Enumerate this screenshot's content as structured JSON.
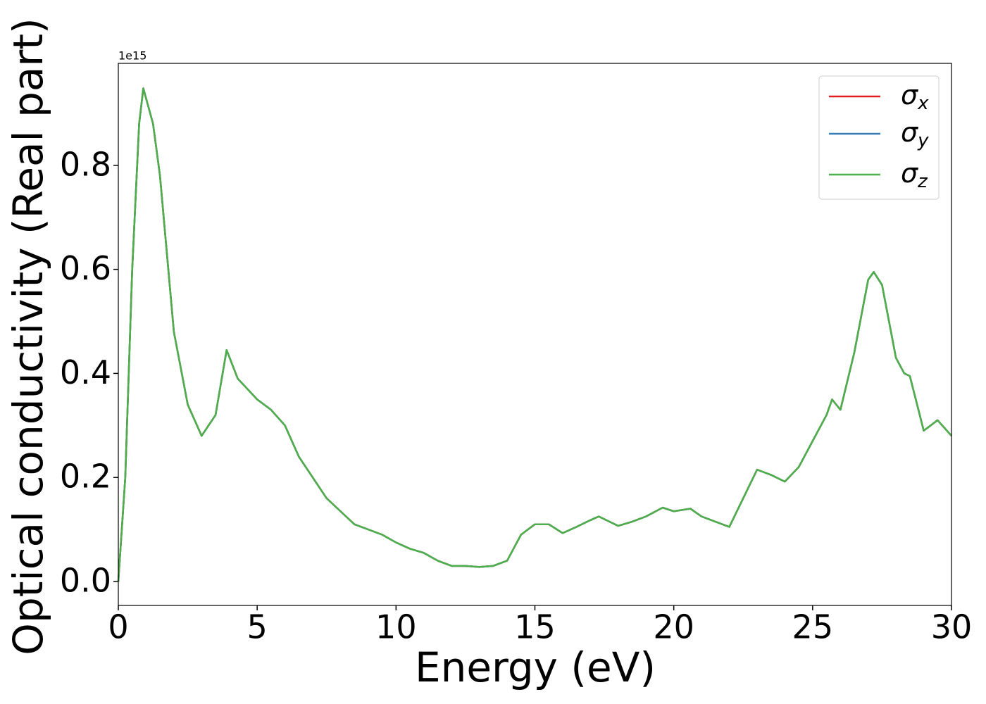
{
  "chart_data": {
    "type": "line",
    "xlabel": "Energy (eV)",
    "ylabel": "Optical conductivity (Real part)",
    "y_offset_label": "1e15",
    "x": [
      0,
      0.25,
      0.5,
      0.75,
      0.9,
      1.25,
      1.5,
      2.0,
      2.5,
      3.0,
      3.5,
      3.9,
      4.3,
      5.0,
      5.5,
      6.0,
      6.5,
      7.0,
      7.5,
      8.0,
      8.5,
      9.0,
      9.5,
      10.0,
      10.5,
      11.0,
      11.5,
      12.0,
      12.5,
      13.0,
      13.5,
      14.0,
      14.5,
      15.0,
      15.5,
      16.0,
      16.5,
      17.0,
      17.3,
      18.0,
      18.5,
      19.0,
      19.6,
      20.0,
      20.6,
      21.0,
      21.5,
      22.0,
      22.5,
      23.0,
      23.5,
      24.0,
      24.5,
      25.0,
      25.5,
      25.7,
      26.0,
      26.5,
      27.0,
      27.2,
      27.5,
      28.0,
      28.3,
      28.5,
      29.0,
      29.5,
      30.0
    ],
    "series": [
      {
        "name": "σx",
        "color": "#e41a1c",
        "values": [
          0.0,
          0.2,
          0.6,
          0.88,
          0.948,
          0.88,
          0.78,
          0.48,
          0.34,
          0.28,
          0.32,
          0.445,
          0.39,
          0.35,
          0.33,
          0.3,
          0.24,
          0.2,
          0.16,
          0.135,
          0.11,
          0.1,
          0.09,
          0.075,
          0.063,
          0.055,
          0.04,
          0.03,
          0.03,
          0.028,
          0.03,
          0.04,
          0.09,
          0.11,
          0.11,
          0.093,
          0.105,
          0.118,
          0.125,
          0.107,
          0.115,
          0.125,
          0.142,
          0.135,
          0.14,
          0.125,
          0.115,
          0.105,
          0.16,
          0.215,
          0.205,
          0.192,
          0.22,
          0.27,
          0.32,
          0.35,
          0.33,
          0.44,
          0.58,
          0.595,
          0.57,
          0.43,
          0.4,
          0.395,
          0.29,
          0.31,
          0.28
        ]
      },
      {
        "name": "σy",
        "color": "#377eb8",
        "values": [
          0.0,
          0.2,
          0.6,
          0.88,
          0.948,
          0.88,
          0.78,
          0.48,
          0.34,
          0.28,
          0.32,
          0.445,
          0.39,
          0.35,
          0.33,
          0.3,
          0.24,
          0.2,
          0.16,
          0.135,
          0.11,
          0.1,
          0.09,
          0.075,
          0.063,
          0.055,
          0.04,
          0.03,
          0.03,
          0.028,
          0.03,
          0.04,
          0.09,
          0.11,
          0.11,
          0.093,
          0.105,
          0.118,
          0.125,
          0.107,
          0.115,
          0.125,
          0.142,
          0.135,
          0.14,
          0.125,
          0.115,
          0.105,
          0.16,
          0.215,
          0.205,
          0.192,
          0.22,
          0.27,
          0.32,
          0.35,
          0.33,
          0.44,
          0.58,
          0.595,
          0.57,
          0.43,
          0.4,
          0.395,
          0.29,
          0.31,
          0.28
        ]
      },
      {
        "name": "σz",
        "color": "#4daf4a",
        "values": [
          0.0,
          0.2,
          0.6,
          0.88,
          0.948,
          0.88,
          0.78,
          0.48,
          0.34,
          0.28,
          0.32,
          0.445,
          0.39,
          0.35,
          0.33,
          0.3,
          0.24,
          0.2,
          0.16,
          0.135,
          0.11,
          0.1,
          0.09,
          0.075,
          0.063,
          0.055,
          0.04,
          0.03,
          0.03,
          0.028,
          0.03,
          0.04,
          0.09,
          0.11,
          0.11,
          0.093,
          0.105,
          0.118,
          0.125,
          0.107,
          0.115,
          0.125,
          0.142,
          0.135,
          0.14,
          0.125,
          0.115,
          0.105,
          0.16,
          0.215,
          0.205,
          0.192,
          0.22,
          0.27,
          0.32,
          0.35,
          0.33,
          0.44,
          0.58,
          0.595,
          0.57,
          0.43,
          0.4,
          0.395,
          0.29,
          0.31,
          0.28
        ]
      }
    ],
    "xlim": [
      0,
      30
    ],
    "xticks": [
      0,
      5,
      10,
      15,
      20,
      25,
      30
    ],
    "ylim": [
      -0.046,
      0.996
    ],
    "yticks": [
      {
        "value": 0,
        "label": "0.0"
      },
      0.2,
      0.4,
      0.6,
      0.8
    ],
    "legend": "upper right",
    "grid": false
  }
}
